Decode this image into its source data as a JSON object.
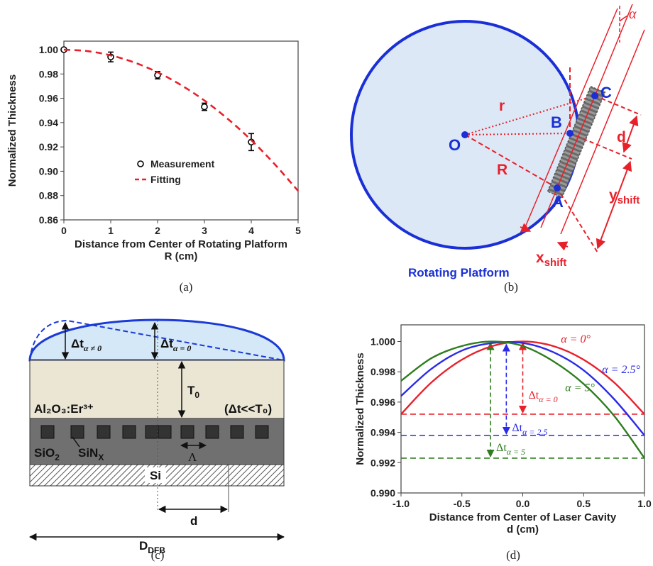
{
  "chart_data": [
    {
      "type": "scatter",
      "ylabel": "Normalized Thickness",
      "xlabel": [
        "Distance from Center of Rotating Platform",
        "R (cm)"
      ],
      "xlim": [
        0,
        5
      ],
      "ylim": [
        0.86,
        1.007
      ],
      "xticks": [
        0,
        1,
        2,
        3,
        4,
        5
      ],
      "yticks": [
        0.86,
        0.88,
        {
          "value": 0.9,
          "label": "0.90"
        },
        0.92,
        0.94,
        0.96,
        0.98,
        {
          "value": 1,
          "label": "1.00"
        }
      ],
      "series": [
        {
          "name": "Measurement",
          "style": "markers",
          "color": "#000000",
          "x": [
            0,
            1,
            2,
            3,
            4
          ],
          "values": [
            1.0,
            0.994,
            0.979,
            0.953,
            0.924
          ],
          "errors": [
            null,
            0.004,
            0.003,
            0.003,
            0.007
          ]
        },
        {
          "name": "Fitting",
          "style": "dashed",
          "color": "#e8202a",
          "x": [
            0,
            0.5,
            1,
            1.5,
            2,
            2.5,
            3,
            3.5,
            4,
            4.5,
            5
          ],
          "values": [
            1.0,
            0.9988,
            0.9953,
            0.9895,
            0.9814,
            0.9709,
            0.9582,
            0.943,
            0.9256,
            0.9058,
            0.8838
          ]
        }
      ]
    },
    {
      "type": "line",
      "ylabel": "Normalized Thickness",
      "xlabel": [
        "Distance from Center of Laser Cavity",
        "d (cm)"
      ],
      "xlim": [
        -1,
        1
      ],
      "ylim": [
        0.99,
        1.0011
      ],
      "xticks": [
        {
          "value": -1,
          "label": "-1.0"
        },
        {
          "value": -0.5,
          "label": "-0.5"
        },
        {
          "value": 0,
          "label": "0.0"
        },
        0.5,
        {
          "value": 1,
          "label": "1.0"
        }
      ],
      "yticks": [
        {
          "value": 0.99,
          "label": "0.990"
        },
        {
          "value": 0.992,
          "label": "0.992"
        },
        {
          "value": 0.994,
          "label": "0.994"
        },
        {
          "value": 0.996,
          "label": "0.996"
        },
        {
          "value": 0.998,
          "label": "0.998"
        },
        {
          "value": 1,
          "label": "1.000"
        }
      ],
      "x": [
        -1,
        -0.75,
        -0.5,
        -0.25,
        0,
        0.25,
        0.5,
        0.75,
        1
      ],
      "series": [
        {
          "name": "α = 0°",
          "style": "solid",
          "color": "#e8202a",
          "values": [
            0.9952,
            0.9973,
            0.9988,
            0.9997,
            1.0,
            0.9997,
            0.9988,
            0.9973,
            0.9952
          ]
        },
        {
          "name": "α = 2.5°",
          "style": "solid",
          "color": "#2a2ae8",
          "values": [
            0.9964,
            0.9982,
            0.9994,
            0.9999,
            0.9999,
            0.9993,
            0.9981,
            0.9962,
            0.9938
          ]
        },
        {
          "name": "α = 5°",
          "style": "solid",
          "color": "#2e7d1e",
          "values": [
            0.9974,
            0.9989,
            0.9997,
            1.0,
            0.9997,
            0.9987,
            0.9972,
            0.9951,
            0.9923
          ]
        }
      ],
      "ref_lines": [
        {
          "value": 0.9952,
          "x": 0,
          "label": {
            "main": "Δt",
            "sub": "α = 0"
          }
        },
        {
          "value": 0.9938,
          "x": -0.135,
          "label": {
            "main": "Δt",
            "sub": "α = 2.5"
          }
        },
        {
          "value": 0.9923,
          "x": -0.265,
          "label": {
            "main": "Δt",
            "sub": "α = 5"
          }
        }
      ]
    }
  ],
  "captions": [
    "(a)",
    "(b)",
    "(c)",
    "(d)"
  ],
  "panel_b": {
    "O": "O",
    "r": "r",
    "B": "B",
    "C": "C",
    "R": "R",
    "d": "d",
    "A": "A",
    "alpha": "α",
    "y_shift": {
      "main": "y",
      "sub": "shift"
    },
    "x_shift": {
      "main": "x",
      "sub": "shift"
    },
    "label": "Rotating Platform"
  },
  "panel_c": {
    "dt_tilt": {
      "main": "Δt",
      "sub": "α ≠ 0"
    },
    "dt_flat": {
      "main": "Δt",
      "sub": "α = 0"
    },
    "T0": {
      "main": "T",
      "sub": "0"
    },
    "film": "Al₂O₃:Er³⁺",
    "condition": "(Δt<<T₀)",
    "cladding": {
      "main": "SiO",
      "sub": "2"
    },
    "grating": {
      "main": "SiN",
      "sub": "X"
    },
    "period": "Λ",
    "substrate": "Si",
    "d": "d",
    "width": {
      "main": "D",
      "sub": "DFB"
    }
  }
}
